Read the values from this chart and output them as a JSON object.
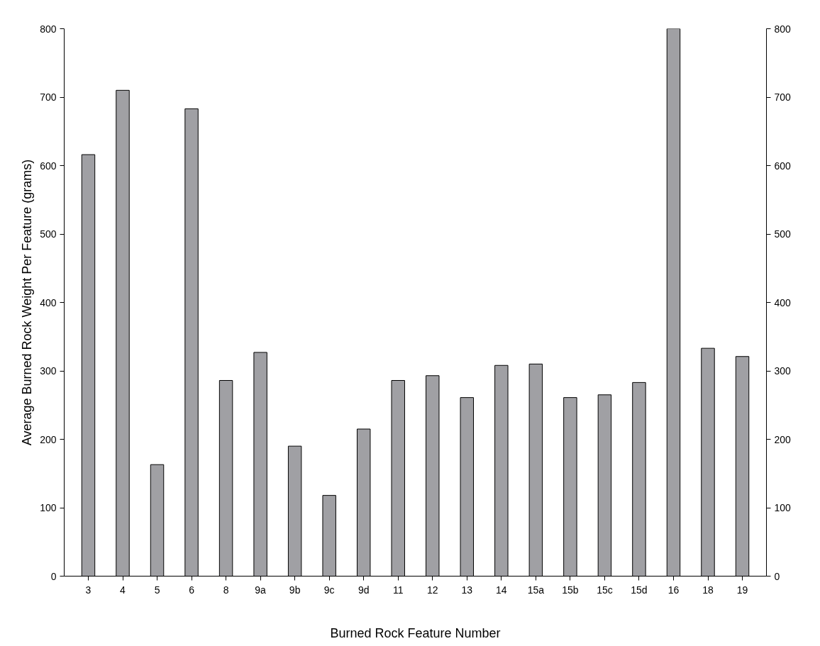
{
  "chart_data": {
    "type": "bar",
    "xlabel": "Burned Rock Feature Number",
    "ylabel": "Average Burned Rock Weight Per Feature (grams)",
    "categories": [
      "3",
      "4",
      "5",
      "6",
      "8",
      "9a",
      "9b",
      "9c",
      "9d",
      "11",
      "12",
      "13",
      "14",
      "15a",
      "15b",
      "15c",
      "15d",
      "16",
      "18",
      "19"
    ],
    "series": [
      {
        "color": "#a0a0a4",
        "values": [
          616,
          710,
          163,
          683,
          286,
          327,
          190,
          118,
          215,
          286,
          293,
          261,
          308,
          310,
          261,
          265,
          283,
          800,
          333,
          321
        ]
      }
    ],
    "ylim": [
      0,
      800
    ],
    "yticks": [
      0,
      100,
      200,
      300,
      400,
      500,
      600,
      700,
      800
    ],
    "y2lim": [
      0,
      800
    ],
    "y2ticks": [
      0,
      100,
      200,
      300,
      400,
      500,
      600,
      700,
      800
    ],
    "grid": false
  }
}
